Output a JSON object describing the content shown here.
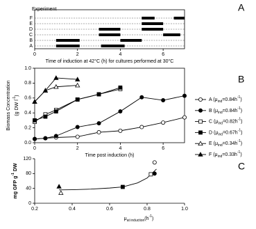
{
  "chart_data": [
    {
      "type": "gantt",
      "panel_label": "A",
      "legend_title": "Experiment",
      "rows": [
        "A",
        "B",
        "C",
        "D",
        "E",
        "F"
      ],
      "intervals": [
        [
          [
            1.0,
            2.1
          ],
          [
            3.1,
            4.2
          ]
        ],
        [
          [
            1.0,
            2.1
          ],
          [
            4.0,
            5.0
          ]
        ],
        [
          [
            3.0,
            4.0
          ],
          [
            6.0,
            6.8
          ]
        ],
        [
          [
            3.0,
            4.0
          ],
          [
            5.0,
            6.0
          ]
        ],
        [
          [
            5.0,
            6.0
          ]
        ],
        [
          [
            5.0,
            5.6
          ],
          [
            6.5,
            7.0
          ]
        ]
      ],
      "color": "#000000",
      "xlabel": "Time of induction at 42°C (h) for cultures performed at 30°C",
      "xlim": [
        0,
        7
      ],
      "xticks": [
        0,
        2,
        4,
        6
      ]
    },
    {
      "type": "line",
      "panel_label": "B",
      "ylabel": "Biomass Concentration",
      "ylabel_parts": [
        "(g DW l",
        "-1",
        ")"
      ],
      "xlabel": "Time post induction (h)",
      "xlim": [
        0,
        7
      ],
      "xticks": [
        0,
        2,
        4,
        6
      ],
      "ylim": [
        0,
        1.0
      ],
      "yticks": [
        {
          "value": 0,
          "label": "0.0"
        },
        0.2,
        0.4,
        0.6,
        0.8,
        {
          "value": 1.0,
          "label": "1.0"
        }
      ],
      "series": [
        {
          "label_parts": [
            "A (μ",
            "ind",
            "=0.84h",
            "-1",
            ")"
          ],
          "marker": "circle",
          "filled": false,
          "color": "#000000",
          "x": [
            0,
            0.5,
            1,
            2,
            3,
            4,
            5,
            6,
            7
          ],
          "values": [
            0.05,
            0.06,
            0.07,
            0.08,
            0.14,
            0.16,
            0.21,
            0.27,
            0.34
          ]
        },
        {
          "label_parts": [
            "B (μ",
            "ind",
            "=0.84h",
            "-1",
            ")"
          ],
          "marker": "circle",
          "filled": true,
          "color": "#000000",
          "x": [
            0,
            0.5,
            1,
            2,
            3,
            4,
            5,
            6,
            7
          ],
          "values": [
            0.05,
            0.06,
            0.09,
            0.21,
            0.26,
            0.42,
            0.61,
            0.57,
            0.63
          ]
        },
        {
          "label_parts": [
            "C (μ",
            "ind",
            "=0.82h",
            "-1",
            ")"
          ],
          "marker": "square",
          "filled": false,
          "color": "#000000",
          "x": [
            0,
            0.5,
            1,
            2,
            3,
            4
          ],
          "values": [
            0.28,
            0.38,
            0.44,
            0.58,
            0.65,
            0.72
          ]
        },
        {
          "label_parts": [
            "D (μ",
            "ind",
            "=0.67h",
            "-1",
            ")"
          ],
          "marker": "square",
          "filled": true,
          "color": "#000000",
          "x": [
            0,
            0.5,
            1,
            2,
            3,
            4
          ],
          "values": [
            0.3,
            0.35,
            0.42,
            0.58,
            0.65,
            0.74
          ]
        },
        {
          "label_parts": [
            "E (μ",
            "ind",
            "=0.34h",
            "-1",
            ")"
          ],
          "marker": "triangle",
          "filled": false,
          "color": "#000000",
          "x": [
            0,
            0.5,
            1,
            2
          ],
          "values": [
            0.55,
            0.7,
            0.75,
            0.77
          ]
        },
        {
          "label_parts": [
            "F (μ",
            "ind",
            "=0.33h",
            "-1",
            ")"
          ],
          "marker": "triangle",
          "filled": true,
          "color": "#000000",
          "x": [
            0,
            0.5,
            1,
            2
          ],
          "values": [
            0.55,
            0.7,
            0.87,
            0.85
          ]
        }
      ]
    },
    {
      "type": "scatter",
      "panel_label": "C",
      "ylabel_parts": [
        "mg GFP g",
        "-1",
        " DW"
      ],
      "xlabel_parts": [
        "μ",
        "at induction",
        "(h",
        "-1",
        ")"
      ],
      "xlim": [
        0.2,
        1.0
      ],
      "xticks": [
        0.2,
        0.4,
        0.6,
        0.8,
        {
          "value": 1.0,
          "label": "1.0"
        }
      ],
      "ylim": [
        0,
        120
      ],
      "yticks": [
        0,
        40,
        80,
        120
      ],
      "points": {
        "x": [
          0.84,
          0.84,
          0.82,
          0.67,
          0.34,
          0.33
        ],
        "values": [
          110,
          80,
          78,
          44,
          28,
          45
        ],
        "markers": [
          "circle",
          "circle",
          "square",
          "square",
          "triangle",
          "triangle"
        ],
        "filled": [
          false,
          true,
          false,
          true,
          false,
          true
        ]
      },
      "fit": {
        "x": [
          0.33,
          0.4,
          0.5,
          0.6,
          0.67,
          0.75,
          0.8,
          0.85
        ],
        "values": [
          36,
          36.5,
          38,
          41,
          44,
          55,
          68,
          92
        ]
      }
    }
  ]
}
